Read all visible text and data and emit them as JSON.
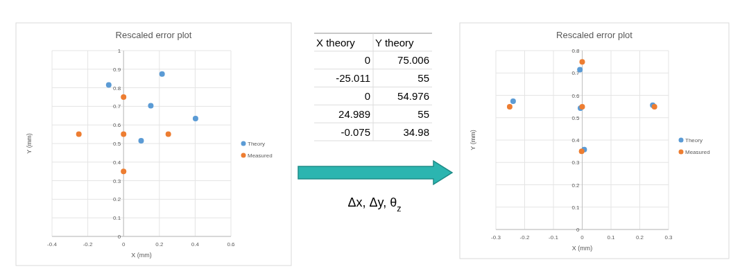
{
  "chart_data": [
    {
      "type": "scatter",
      "title": "Rescaled error plot",
      "xlabel": "X (mm)",
      "ylabel": "Y (mm)",
      "xlim": [
        -0.4,
        0.6
      ],
      "xticks": [
        -0.4,
        -0.2,
        0,
        0.2,
        0.4,
        0.6
      ],
      "ylim": [
        0,
        1
      ],
      "yticks": [
        0,
        0.1,
        0.2,
        0.3,
        0.4,
        0.5,
        0.6,
        0.7,
        0.8,
        0.9,
        1
      ],
      "grid": true,
      "legend": "right",
      "marker": "circle",
      "series": [
        {
          "name": "Theory",
          "color": "#5b9bd5",
          "x": [
            -0.083,
            0.215,
            0.152,
            0.402,
            0.098
          ],
          "values": [
            0.815,
            0.874,
            0.703,
            0.634,
            0.515
          ]
        },
        {
          "name": "Measured",
          "color": "#ed7d31",
          "x": [
            -0.25,
            0,
            0,
            0.25,
            0
          ],
          "values": [
            0.55,
            0.75,
            0.55,
            0.55,
            0.35
          ]
        }
      ]
    },
    {
      "type": "other",
      "categories": [
        "X theory",
        "Y theory"
      ],
      "annotations": [
        "0",
        "75.006",
        "-25.011",
        "55",
        "0",
        "54.976",
        "24.989",
        "55",
        "-0.075",
        "34.98"
      ]
    },
    {
      "type": "other",
      "annotations": [
        "Δx, Δy, θ$_{z}$"
      ]
    },
    {
      "type": "scatter",
      "title": "Rescaled error plot",
      "xlabel": "X (mm)",
      "ylabel": "Y (mm)",
      "xlim": [
        -0.3,
        0.3
      ],
      "xticks": [
        -0.3,
        -0.2,
        -0.1,
        0,
        0.1,
        0.2,
        0.3
      ],
      "ylim": [
        0,
        0.8
      ],
      "yticks": [
        0,
        0.1,
        0.2,
        0.3,
        0.4,
        0.5,
        0.6,
        0.7,
        0.8
      ],
      "grid": true,
      "legend": "right",
      "marker": "circle",
      "series": [
        {
          "name": "Theory",
          "color": "#5b9bd5",
          "x": [
            -0.24,
            -0.008,
            -0.006,
            0.245,
            0.007
          ],
          "values": [
            0.574,
            0.715,
            0.543,
            0.556,
            0.357
          ]
        },
        {
          "name": "Measured",
          "color": "#ed7d31",
          "x": [
            -0.252,
            0,
            0,
            0.251,
            -0.002
          ],
          "values": [
            0.549,
            0.75,
            0.549,
            0.549,
            0.35
          ]
        }
      ]
    }
  ]
}
